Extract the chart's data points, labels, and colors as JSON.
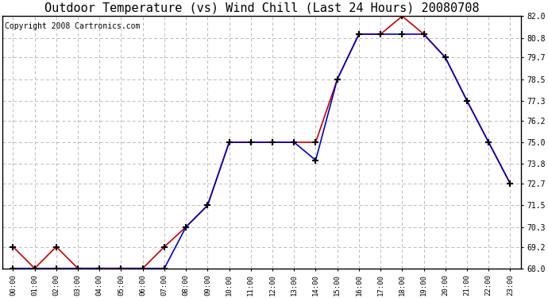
{
  "title": "Outdoor Temperature (vs) Wind Chill (Last 24 Hours) 20080708",
  "copyright": "Copyright 2008 Cartronics.com",
  "x_labels": [
    "00:00",
    "01:00",
    "02:00",
    "03:00",
    "04:00",
    "05:00",
    "06:00",
    "07:00",
    "08:00",
    "09:00",
    "10:00",
    "11:00",
    "12:00",
    "13:00",
    "14:00",
    "15:00",
    "16:00",
    "17:00",
    "18:00",
    "19:00",
    "20:00",
    "21:00",
    "22:00",
    "23:00"
  ],
  "temp_red": [
    69.2,
    68.0,
    69.2,
    68.0,
    68.0,
    68.0,
    68.0,
    69.2,
    70.3,
    71.5,
    75.0,
    75.0,
    75.0,
    75.0,
    75.0,
    78.5,
    81.0,
    81.0,
    82.0,
    81.0,
    79.7,
    77.3,
    75.0,
    72.7
  ],
  "wind_chill_blue": [
    68.0,
    68.0,
    68.0,
    68.0,
    68.0,
    68.0,
    68.0,
    68.0,
    70.3,
    71.5,
    75.0,
    75.0,
    75.0,
    75.0,
    74.0,
    78.5,
    81.0,
    81.0,
    81.0,
    81.0,
    79.7,
    77.3,
    75.0,
    72.7
  ],
  "ylim_min": 68.0,
  "ylim_max": 82.0,
  "yticks": [
    68.0,
    69.2,
    70.3,
    71.5,
    72.7,
    73.8,
    75.0,
    76.2,
    77.3,
    78.5,
    79.7,
    80.8,
    82.0
  ],
  "red_color": "#cc0000",
  "blue_color": "#0000cc",
  "bg_color": "#ffffff",
  "grid_color": "#bbbbbb",
  "title_fontsize": 11,
  "copyright_fontsize": 7
}
